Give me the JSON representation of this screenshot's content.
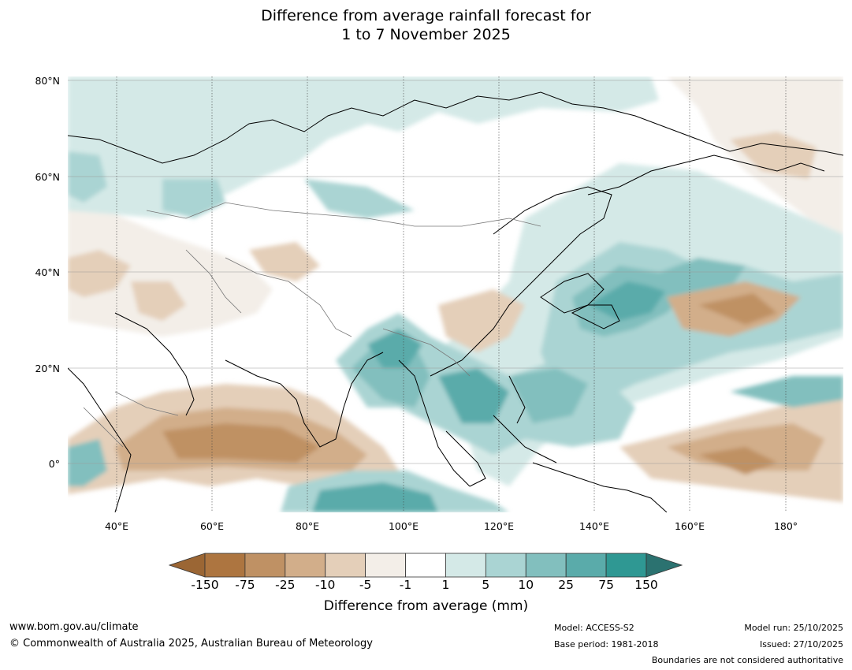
{
  "title": {
    "line1": "Difference from average rainfall forecast for",
    "line2": "1 to 7 November 2025"
  },
  "map": {
    "lat_labels": [
      "80°N",
      "60°N",
      "40°N",
      "20°N",
      "0°"
    ],
    "lon_labels": [
      "40°E",
      "60°E",
      "80°E",
      "100°E",
      "120°E",
      "140°E",
      "160°E",
      "180°"
    ]
  },
  "colorbar": {
    "tick_labels": [
      "-150",
      "-75",
      "-25",
      "-10",
      "-5",
      "-1",
      "1",
      "5",
      "10",
      "25",
      "75",
      "150"
    ],
    "colors": [
      "#9b6634",
      "#ad7540",
      "#bf9164",
      "#d2ae8a",
      "#e4cfb9",
      "#f3eee8",
      "#ffffff",
      "#d4e9e7",
      "#aad4d3",
      "#82bfbe",
      "#5aabaa",
      "#2f9893",
      "#2b7270"
    ],
    "title": "Difference from average (mm)"
  },
  "footer": {
    "url": "www.bom.gov.au/climate",
    "copyright": "© Commonwealth of Australia 2025, Australian Bureau of Meteorology",
    "model": "Model: ACCESS-S2",
    "base_period": "Base period: 1981-2018",
    "model_run": "Model run: 25/10/2025",
    "issued": "Issued: 27/10/2025",
    "disclaimer": "Boundaries are not considered authoritative"
  }
}
